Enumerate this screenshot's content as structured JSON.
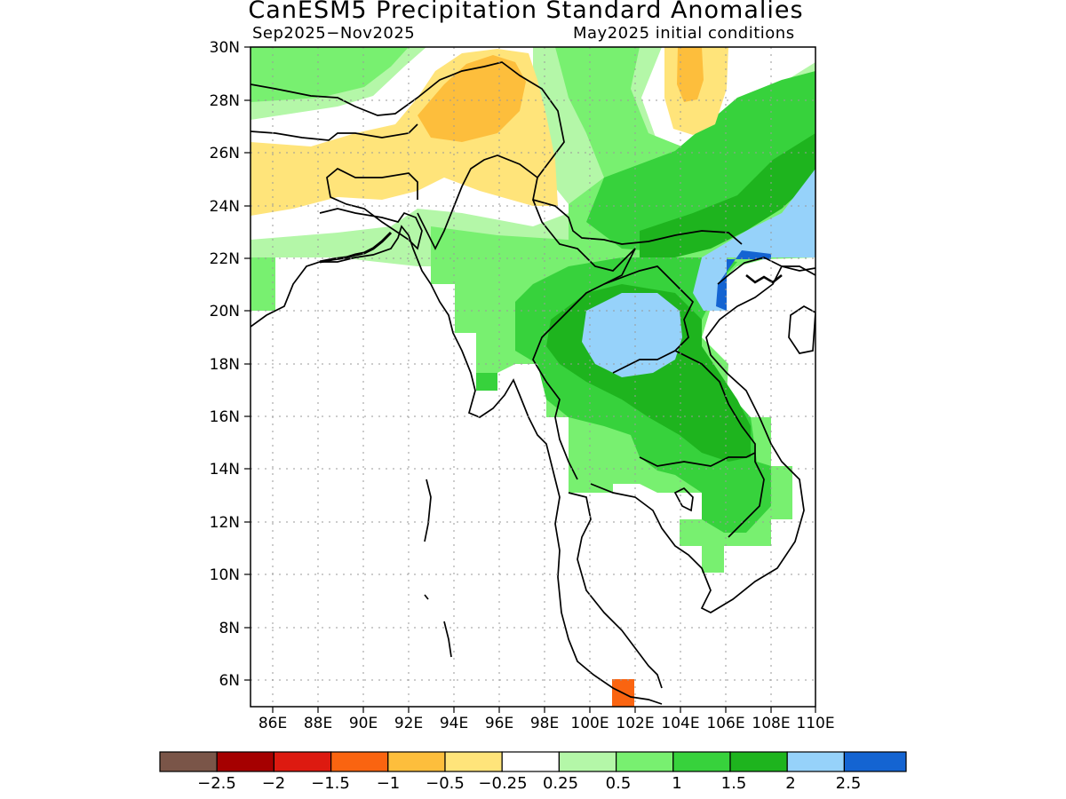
{
  "title": "CanESM5 Precipitation Standard Anomalies",
  "subtitle_left": "Sep2025−Nov2025",
  "subtitle_right": "May2025 initial conditions",
  "map": {
    "lon_range": [
      85,
      110
    ],
    "lat_range": [
      5,
      30
    ],
    "x_ticks": [
      "86E",
      "88E",
      "90E",
      "92E",
      "94E",
      "96E",
      "98E",
      "100E",
      "102E",
      "104E",
      "106E",
      "108E",
      "110E"
    ],
    "y_ticks": [
      "6N",
      "8N",
      "10N",
      "12N",
      "14N",
      "16N",
      "18N",
      "20N",
      "22N",
      "24N",
      "26N",
      "28N",
      "30N"
    ]
  },
  "colorbar": {
    "labels": [
      "−2.5",
      "−2",
      "−1.5",
      "−1",
      "−0.5",
      "−0.25",
      "0.25",
      "0.5",
      "1",
      "1.5",
      "2",
      "2.5"
    ],
    "colors": [
      "#7a5548",
      "#a50000",
      "#dd1a10",
      "#fa6410",
      "#fdbe3c",
      "#ffe47a",
      "#ffffff",
      "#b4f7a8",
      "#78f070",
      "#37d23c",
      "#1eb41e",
      "#96d2fa",
      "#1464d2"
    ]
  },
  "anomaly_colors": {
    "dry_025": "#ffe47a",
    "dry_05": "#fdbe3c",
    "dry_15": "#fa6410",
    "wet_025": "#b4f7a8",
    "wet_05": "#78f070",
    "wet_1": "#37d23c",
    "wet_15": "#1eb41e",
    "wet_2": "#96d2fa",
    "wet_25": "#1464d2"
  }
}
